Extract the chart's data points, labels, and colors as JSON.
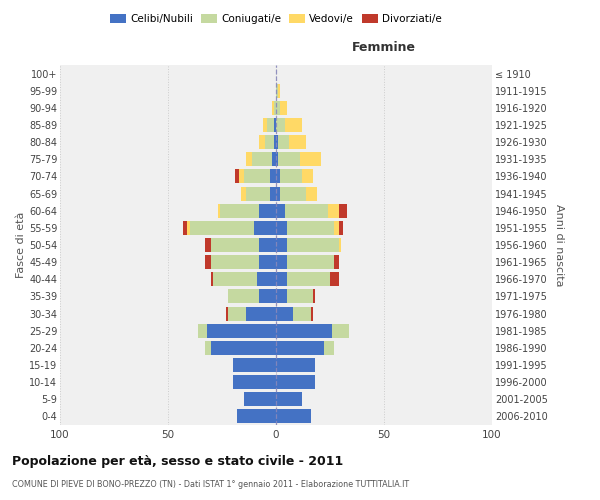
{
  "age_groups": [
    "0-4",
    "5-9",
    "10-14",
    "15-19",
    "20-24",
    "25-29",
    "30-34",
    "35-39",
    "40-44",
    "45-49",
    "50-54",
    "55-59",
    "60-64",
    "65-69",
    "70-74",
    "75-79",
    "80-84",
    "85-89",
    "90-94",
    "95-99",
    "100+"
  ],
  "birth_years": [
    "2006-2010",
    "2001-2005",
    "1996-2000",
    "1991-1995",
    "1986-1990",
    "1981-1985",
    "1976-1980",
    "1971-1975",
    "1966-1970",
    "1961-1965",
    "1956-1960",
    "1951-1955",
    "1946-1950",
    "1941-1945",
    "1936-1940",
    "1931-1935",
    "1926-1930",
    "1921-1925",
    "1916-1920",
    "1911-1915",
    "≤ 1910"
  ],
  "males": {
    "celibi": [
      18,
      15,
      20,
      20,
      30,
      32,
      14,
      8,
      9,
      8,
      8,
      10,
      8,
      3,
      3,
      2,
      1,
      1,
      0,
      0,
      0
    ],
    "coniugati": [
      0,
      0,
      0,
      0,
      3,
      4,
      8,
      14,
      20,
      22,
      22,
      30,
      18,
      11,
      12,
      9,
      4,
      3,
      1,
      0,
      0
    ],
    "vedovi": [
      0,
      0,
      0,
      0,
      0,
      0,
      0,
      0,
      0,
      0,
      0,
      1,
      1,
      2,
      2,
      3,
      3,
      2,
      1,
      0,
      0
    ],
    "divorziati": [
      0,
      0,
      0,
      0,
      0,
      0,
      1,
      0,
      1,
      3,
      3,
      2,
      0,
      0,
      2,
      0,
      0,
      0,
      0,
      0,
      0
    ]
  },
  "females": {
    "nubili": [
      16,
      12,
      18,
      18,
      22,
      26,
      8,
      5,
      5,
      5,
      5,
      5,
      4,
      2,
      2,
      1,
      1,
      0,
      0,
      0,
      0
    ],
    "coniugate": [
      0,
      0,
      0,
      0,
      5,
      8,
      8,
      12,
      20,
      22,
      24,
      22,
      20,
      12,
      10,
      10,
      5,
      4,
      2,
      1,
      0
    ],
    "vedove": [
      0,
      0,
      0,
      0,
      0,
      0,
      0,
      0,
      0,
      0,
      1,
      2,
      5,
      5,
      5,
      10,
      8,
      8,
      3,
      1,
      0
    ],
    "divorziate": [
      0,
      0,
      0,
      0,
      0,
      0,
      1,
      1,
      4,
      2,
      0,
      2,
      4,
      0,
      0,
      0,
      0,
      0,
      0,
      0,
      0
    ]
  },
  "colors": {
    "celibi": "#4472c4",
    "coniugati": "#c5d9a0",
    "vedovi": "#ffd966",
    "divorziati": "#c0392b"
  },
  "title": "Popolazione per età, sesso e stato civile - 2011",
  "subtitle": "COMUNE DI PIEVE DI BONO-PREZZO (TN) - Dati ISTAT 1° gennaio 2011 - Elaborazione TUTTITALIA.IT",
  "xlabel_right": "Femmine",
  "ylabel_left": "Fasce di età",
  "ylabel_right": "Anni di nascita",
  "xlim": 100,
  "legend_labels": [
    "Celibi/Nubili",
    "Coniugati/e",
    "Vedovi/e",
    "Divorziati/e"
  ],
  "background_color": "#ffffff",
  "plot_bg": "#f0f0f0"
}
